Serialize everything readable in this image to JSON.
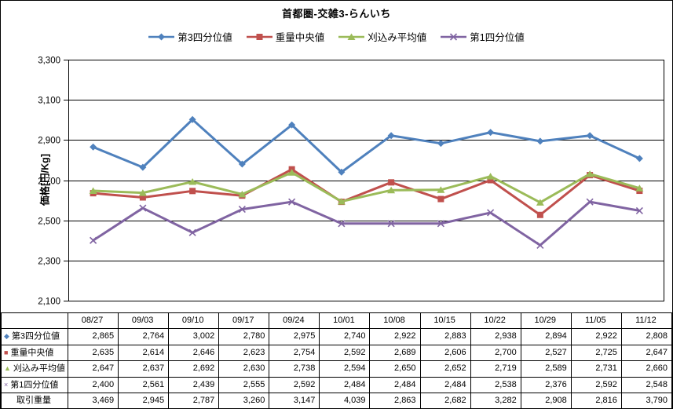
{
  "chart_data": {
    "type": "line",
    "title": "首都圏-交雑3-らんいち",
    "ylabel": "価格[円/Kg]",
    "xlabel": "",
    "ylim": [
      2100,
      3300
    ],
    "y_ticks": [
      3300,
      3100,
      2900,
      2700,
      2500,
      2300,
      2100
    ],
    "grid": "horizontal",
    "legend_position": "top",
    "categories": [
      "08/27",
      "09/03",
      "09/10",
      "09/17",
      "09/24",
      "10/01",
      "10/08",
      "10/15",
      "10/22",
      "10/29",
      "11/05",
      "11/12"
    ],
    "series": [
      {
        "name": "第3四分位値",
        "marker": "diamond",
        "color": "#4F81BD",
        "values": [
          2865,
          2764,
          3002,
          2780,
          2975,
          2740,
          2922,
          2883,
          2938,
          2894,
          2922,
          2808
        ]
      },
      {
        "name": "重量中央値",
        "marker": "square",
        "color": "#C0504D",
        "values": [
          2635,
          2614,
          2646,
          2623,
          2754,
          2592,
          2689,
          2606,
          2700,
          2527,
          2725,
          2647
        ]
      },
      {
        "name": "刈込み平均値",
        "marker": "triangle",
        "color": "#9BBB59",
        "values": [
          2647,
          2637,
          2692,
          2630,
          2738,
          2594,
          2650,
          2652,
          2719,
          2589,
          2731,
          2660
        ]
      },
      {
        "name": "第1四分位値",
        "marker": "x",
        "color": "#8064A2",
        "values": [
          2400,
          2561,
          2439,
          2555,
          2592,
          2484,
          2484,
          2484,
          2538,
          2376,
          2592,
          2548
        ]
      }
    ]
  },
  "table": {
    "corner_label": "",
    "weight_row": {
      "label": "取引重量",
      "values": [
        3469,
        2945,
        2787,
        3260,
        3147,
        4039,
        2863,
        2682,
        3282,
        2908,
        2816,
        3790
      ]
    }
  }
}
